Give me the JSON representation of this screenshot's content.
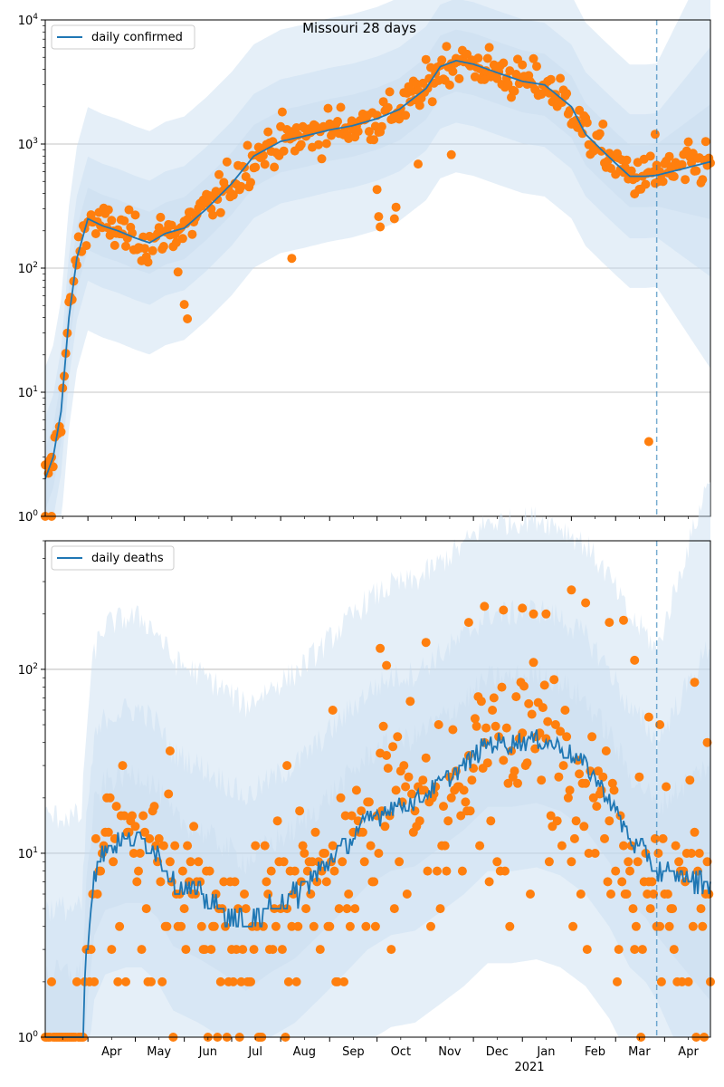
{
  "figure": {
    "title": "Missouri 28 days",
    "colors": {
      "line": "#1f77b4",
      "points": "#ff7f0e",
      "band": "#c6dbef",
      "grid": "#b0b0b0",
      "vline": "#1f77b4"
    }
  },
  "chart_data": [
    {
      "type": "line",
      "name": "confirmed",
      "legend": "daily confirmed",
      "legend_position": "upper-left",
      "y_scale": "log",
      "ylim": [
        1,
        10000
      ],
      "xlim": [
        "2020-03-05",
        "2021-04-30"
      ],
      "y_tick_labels": [
        "10^0",
        "10^1",
        "10^2",
        "10^3",
        "10^4"
      ],
      "grid": "horizontal",
      "forecast_start": "2021-03-27",
      "series_anchors": [
        [
          "2020-03-05",
          2
        ],
        [
          "2020-03-10",
          3
        ],
        [
          "2020-03-15",
          7
        ],
        [
          "2020-03-20",
          40
        ],
        [
          "2020-03-25",
          120
        ],
        [
          "2020-04-01",
          250
        ],
        [
          "2020-04-10",
          220
        ],
        [
          "2020-04-20",
          200
        ],
        [
          "2020-05-01",
          175
        ],
        [
          "2020-05-10",
          160
        ],
        [
          "2020-05-20",
          190
        ],
        [
          "2020-06-01",
          210
        ],
        [
          "2020-06-15",
          300
        ],
        [
          "2020-07-01",
          480
        ],
        [
          "2020-07-15",
          800
        ],
        [
          "2020-08-01",
          1050
        ],
        [
          "2020-08-15",
          1150
        ],
        [
          "2020-09-01",
          1300
        ],
        [
          "2020-09-15",
          1400
        ],
        [
          "2020-10-01",
          1600
        ],
        [
          "2020-10-15",
          1900
        ],
        [
          "2020-11-01",
          2800
        ],
        [
          "2020-11-10",
          4200
        ],
        [
          "2020-11-20",
          4700
        ],
        [
          "2020-12-01",
          4400
        ],
        [
          "2020-12-15",
          3800
        ],
        [
          "2021-01-01",
          3200
        ],
        [
          "2021-01-15",
          3000
        ],
        [
          "2021-02-01",
          2000
        ],
        [
          "2021-02-10",
          1200
        ],
        [
          "2021-02-20",
          900
        ],
        [
          "2021-03-01",
          700
        ],
        [
          "2021-03-10",
          550
        ],
        [
          "2021-03-20",
          550
        ],
        [
          "2021-03-27",
          560
        ],
        [
          "2021-04-10",
          620
        ],
        [
          "2021-04-30",
          720
        ]
      ],
      "observed_outliers": [
        [
          "2020-03-05",
          1
        ],
        [
          "2020-03-09",
          1
        ],
        [
          "2020-05-28",
          93
        ],
        [
          "2020-06-01",
          51
        ],
        [
          "2020-06-03",
          39
        ],
        [
          "2020-08-08",
          120
        ],
        [
          "2020-10-01",
          430
        ],
        [
          "2020-10-02",
          260
        ],
        [
          "2020-10-03",
          215
        ],
        [
          "2020-10-12",
          250
        ],
        [
          "2020-10-13",
          310
        ],
        [
          "2020-10-27",
          690
        ],
        [
          "2020-11-17",
          820
        ],
        [
          "2021-03-22",
          4
        ],
        [
          "2021-03-26",
          1200
        ]
      ]
    },
    {
      "type": "line",
      "name": "deaths",
      "legend": "daily deaths",
      "legend_position": "upper-left",
      "y_scale": "log",
      "ylim": [
        1,
        500
      ],
      "xlim": [
        "2020-03-05",
        "2021-04-30"
      ],
      "y_tick_labels": [
        "10^0",
        "10^1",
        "10^2"
      ],
      "grid": "horizontal",
      "forecast_start": "2021-03-27",
      "series_anchors": [
        [
          "2020-03-05",
          1
        ],
        [
          "2020-03-28",
          1
        ],
        [
          "2020-03-31",
          3
        ],
        [
          "2020-04-05",
          8
        ],
        [
          "2020-04-12",
          11
        ],
        [
          "2020-04-25",
          12
        ],
        [
          "2020-05-05",
          12
        ],
        [
          "2020-05-15",
          10
        ],
        [
          "2020-05-25",
          7
        ],
        [
          "2020-06-10",
          6
        ],
        [
          "2020-06-25",
          5
        ],
        [
          "2020-07-10",
          4
        ],
        [
          "2020-07-25",
          5
        ],
        [
          "2020-08-10",
          6
        ],
        [
          "2020-08-25",
          8
        ],
        [
          "2020-09-10",
          11
        ],
        [
          "2020-09-25",
          15
        ],
        [
          "2020-10-10",
          18
        ],
        [
          "2020-10-25",
          19
        ],
        [
          "2020-11-10",
          24
        ],
        [
          "2020-11-25",
          30
        ],
        [
          "2020-12-10",
          40
        ],
        [
          "2020-12-25",
          40
        ],
        [
          "2021-01-10",
          42
        ],
        [
          "2021-01-25",
          38
        ],
        [
          "2021-02-10",
          30
        ],
        [
          "2021-02-25",
          20
        ],
        [
          "2021-03-10",
          12
        ],
        [
          "2021-03-20",
          10
        ],
        [
          "2021-03-27",
          8
        ],
        [
          "2021-04-30",
          7
        ]
      ],
      "observed_outliers": [
        [
          "2020-05-23",
          36
        ],
        [
          "2020-08-05",
          30
        ],
        [
          "2020-09-03",
          60
        ],
        [
          "2020-10-03",
          130
        ],
        [
          "2020-10-07",
          105
        ],
        [
          "2020-11-01",
          140
        ],
        [
          "2020-11-28",
          180
        ],
        [
          "2020-12-08",
          220
        ],
        [
          "2020-12-20",
          210
        ],
        [
          "2021-01-01",
          215
        ],
        [
          "2021-01-08",
          200
        ],
        [
          "2021-01-16",
          200
        ],
        [
          "2021-02-01",
          270
        ],
        [
          "2021-02-10",
          230
        ],
        [
          "2021-02-25",
          180
        ],
        [
          "2021-03-06",
          185
        ],
        [
          "2021-03-13",
          112
        ],
        [
          "2021-03-22",
          55
        ],
        [
          "2021-03-29",
          50
        ],
        [
          "2021-04-20",
          85
        ],
        [
          "2021-04-28",
          40
        ]
      ]
    }
  ],
  "x_axis": {
    "tick_labels": [
      "Apr",
      "May",
      "Jun",
      "Jul",
      "Aug",
      "Sep",
      "Oct",
      "Nov",
      "Dec",
      "Jan",
      "Feb",
      "Mar",
      "Apr"
    ],
    "year_label": "2021"
  }
}
